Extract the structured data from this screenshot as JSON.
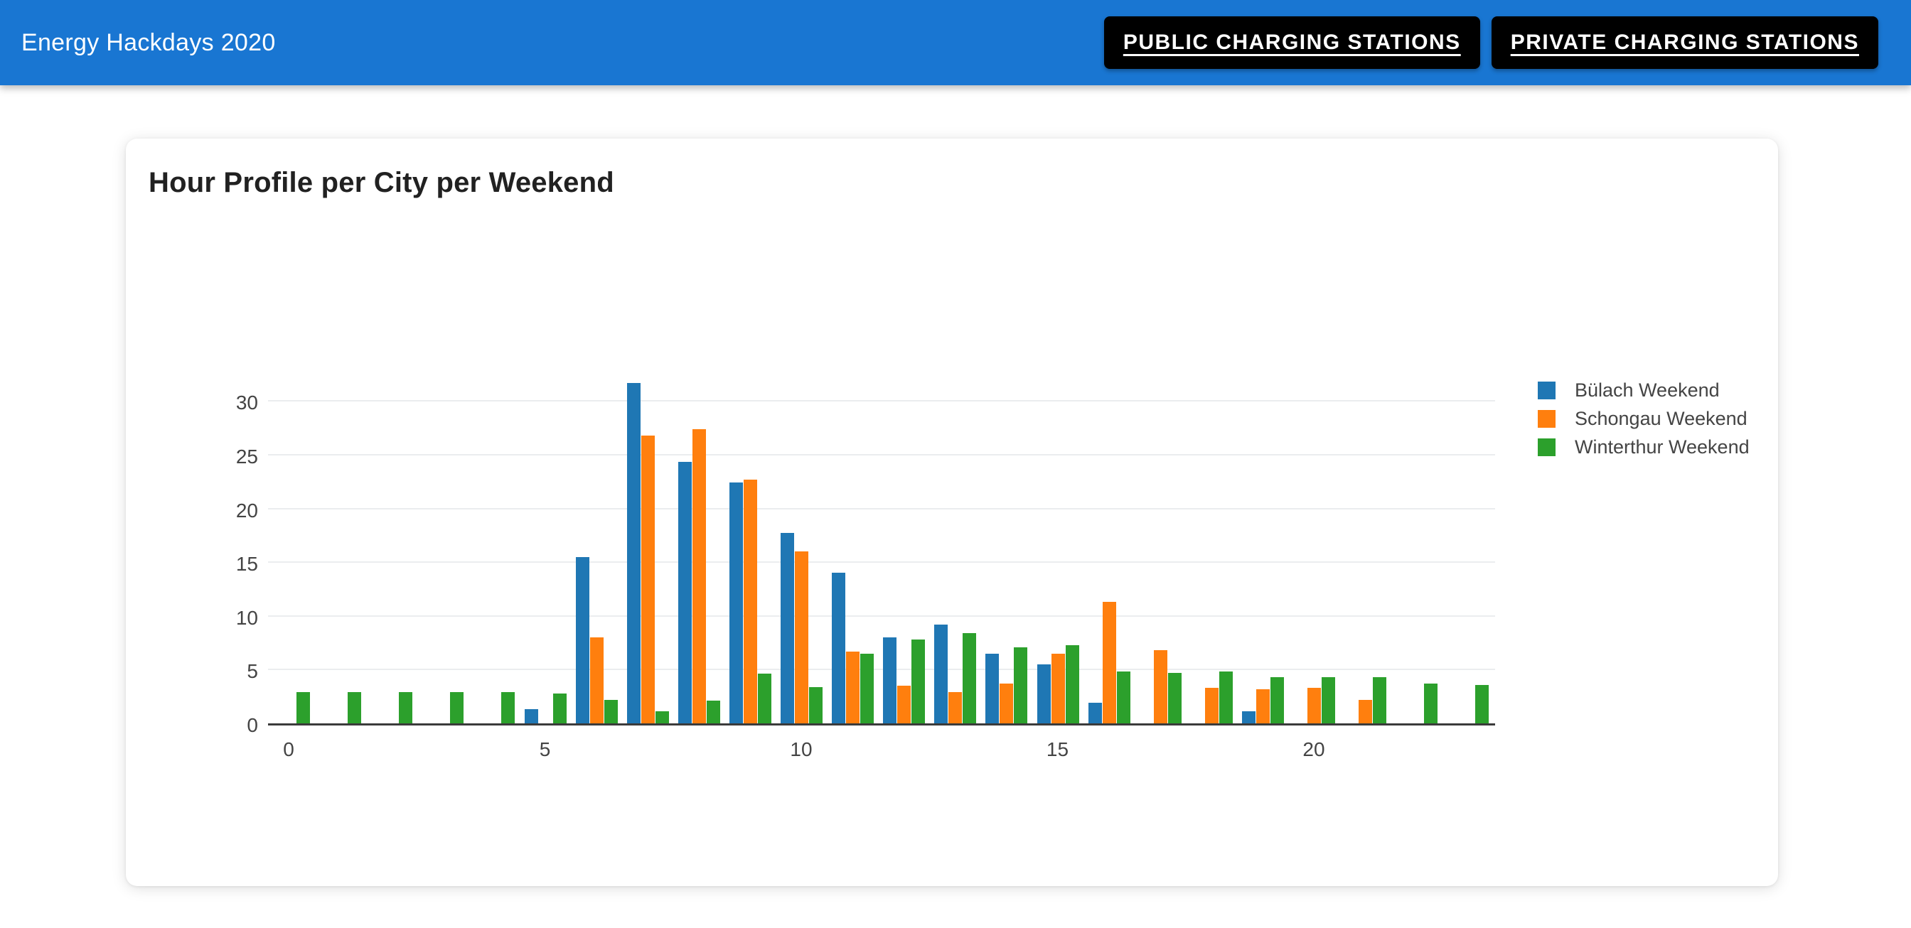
{
  "header": {
    "title": "Energy Hackdays 2020",
    "buttons": [
      {
        "label": "PUBLIC CHARGING STATIONS"
      },
      {
        "label": "PRIVATE CHARGING STATIONS"
      }
    ],
    "colors": {
      "background": "#1976d2",
      "button_background": "#000000",
      "button_text": "#ffffff"
    }
  },
  "card": {
    "title": "Hour Profile per City per Weekend"
  },
  "chart_data": {
    "type": "bar",
    "title": "Hour Profile per City per Weekend",
    "categories": [
      0,
      1,
      2,
      3,
      4,
      5,
      6,
      7,
      8,
      9,
      10,
      11,
      12,
      13,
      14,
      15,
      16,
      17,
      18,
      19,
      20,
      21,
      22,
      23
    ],
    "series": [
      {
        "name": "Bülach Weekend",
        "color": "#1f77b4",
        "values": [
          0,
          0,
          0,
          0,
          0,
          1.3,
          15.5,
          31.7,
          24.3,
          22.4,
          17.7,
          14.0,
          8.0,
          9.2,
          6.5,
          5.5,
          1.9,
          0,
          0,
          1.1,
          0,
          0,
          0,
          0
        ]
      },
      {
        "name": "Schongau Weekend",
        "color": "#ff7f0e",
        "values": [
          0,
          0,
          0,
          0,
          0,
          0,
          8.0,
          26.8,
          27.4,
          22.7,
          16.0,
          6.7,
          3.5,
          2.9,
          3.7,
          6.5,
          11.3,
          6.8,
          3.3,
          3.2,
          3.3,
          2.2,
          0,
          0
        ]
      },
      {
        "name": "Winterthur Weekend",
        "color": "#2ca02c",
        "values": [
          2.9,
          2.9,
          2.9,
          2.9,
          2.9,
          2.8,
          2.2,
          1.1,
          2.1,
          4.6,
          3.4,
          6.5,
          7.8,
          8.4,
          7.1,
          7.3,
          4.8,
          4.7,
          4.8,
          4.3,
          4.3,
          4.3,
          3.7,
          3.6
        ]
      }
    ],
    "xlabel": "",
    "ylabel": "",
    "x_ticks": [
      0,
      5,
      10,
      15,
      20
    ],
    "y_ticks": [
      0,
      5,
      10,
      15,
      20,
      25,
      30
    ],
    "ylim": [
      0,
      32
    ],
    "xlim": [
      -0.6,
      23.6
    ],
    "grid": true,
    "legend_position": "right",
    "colors": {
      "axis_line": "#3b3b3b",
      "gridline": "#ebedef",
      "tick_text": "#444444",
      "legend_text": "#444444"
    }
  }
}
